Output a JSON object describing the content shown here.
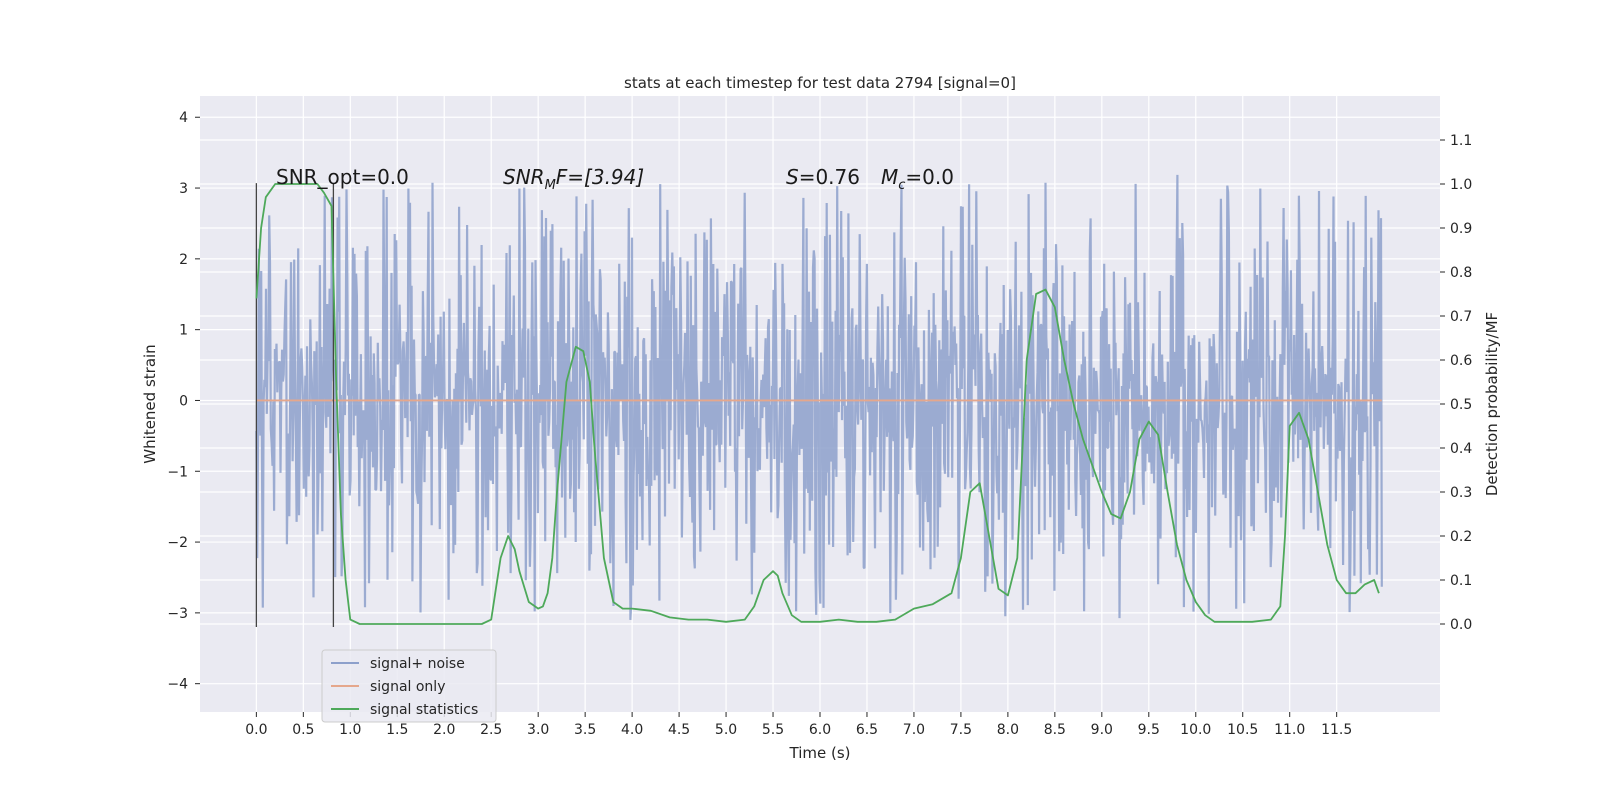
{
  "chart_data": {
    "type": "line",
    "title": "stats at each timestep for test data 2794 [signal=0]",
    "xlabel": "Time (s)",
    "ylabel": "Whitened strain",
    "ylabel_right": "Detection probability/MF",
    "xlim": [
      -0.6,
      12.6
    ],
    "ylim": [
      -4.4,
      4.3
    ],
    "ylim_right": [
      -0.2,
      1.2
    ],
    "xticks": [
      "0.0",
      "0.5",
      "1.0",
      "1.5",
      "2.0",
      "2.5",
      "3.0",
      "3.5",
      "4.0",
      "4.5",
      "5.0",
      "5.5",
      "6.0",
      "6.5",
      "7.0",
      "7.5",
      "8.0",
      "8.5",
      "9.0",
      "9.5",
      "10.0",
      "10.5",
      "11.0",
      "11.5"
    ],
    "yticks_left": [
      "4",
      "3",
      "2",
      "1",
      "0",
      "−1",
      "−2",
      "−3",
      "−4"
    ],
    "yticks_right": [
      "1.1",
      "1.0",
      "0.9",
      "0.8",
      "0.7",
      "0.6",
      "0.5",
      "0.4",
      "0.3",
      "0.2",
      "0.1",
      "0.0"
    ],
    "grid": true,
    "legend_position": "lower-left",
    "annotations": {
      "snr_opt": "SNR_opt=0.0",
      "snr_mf_main": "SNR",
      "snr_mf_sub": "M",
      "snr_mf_rest": "F=[3.94]",
      "s_main": "S",
      "s_rest": "=0.76",
      "mc_main": "M",
      "mc_sub": "c",
      "mc_rest": "=0.0"
    },
    "vertical_markers": [
      0.0,
      0.82
    ],
    "series": [
      {
        "name": "signal+ noise",
        "color": "#8da0cb",
        "kind": "noise",
        "x_range": [
          0.0,
          11.98
        ],
        "sigma": 1.0,
        "band_min": [
          -3.85,
          -2.4
        ],
        "band_max": [
          2.4,
          4.0
        ]
      },
      {
        "name": "signal only",
        "color": "#e5a78c",
        "x": [
          0.0,
          11.98
        ],
        "y": [
          0.0,
          0.0
        ]
      },
      {
        "name": "signal statistics",
        "color": "#4ea95a",
        "axis": "right",
        "x": [
          0.0,
          0.05,
          0.1,
          0.2,
          0.3,
          0.5,
          0.65,
          0.72,
          0.8,
          0.85,
          0.9,
          0.95,
          1.0,
          1.1,
          1.5,
          2.0,
          2.4,
          2.5,
          2.55,
          2.6,
          2.68,
          2.75,
          2.8,
          2.9,
          3.0,
          3.05,
          3.1,
          3.15,
          3.2,
          3.3,
          3.4,
          3.48,
          3.55,
          3.6,
          3.7,
          3.8,
          3.9,
          4.0,
          4.2,
          4.4,
          4.6,
          4.8,
          5.0,
          5.2,
          5.3,
          5.4,
          5.5,
          5.55,
          5.6,
          5.7,
          5.8,
          6.0,
          6.2,
          6.4,
          6.6,
          6.8,
          7.0,
          7.2,
          7.4,
          7.5,
          7.6,
          7.7,
          7.8,
          7.9,
          8.0,
          8.1,
          8.2,
          8.3,
          8.4,
          8.5,
          8.6,
          8.7,
          8.8,
          9.0,
          9.1,
          9.2,
          9.3,
          9.4,
          9.5,
          9.6,
          9.7,
          9.8,
          9.9,
          10.0,
          10.1,
          10.2,
          10.4,
          10.6,
          10.8,
          10.9,
          10.95,
          11.0,
          11.1,
          11.2,
          11.3,
          11.4,
          11.5,
          11.6,
          11.7,
          11.8,
          11.9,
          11.95
        ],
        "y": [
          0.74,
          0.9,
          0.97,
          1.0,
          1.0,
          1.0,
          1.0,
          0.98,
          0.95,
          0.55,
          0.25,
          0.1,
          0.01,
          0.0,
          0.0,
          0.0,
          0.0,
          0.01,
          0.08,
          0.15,
          0.2,
          0.17,
          0.12,
          0.05,
          0.035,
          0.04,
          0.07,
          0.15,
          0.3,
          0.55,
          0.63,
          0.62,
          0.55,
          0.4,
          0.15,
          0.05,
          0.035,
          0.035,
          0.03,
          0.015,
          0.01,
          0.01,
          0.005,
          0.01,
          0.04,
          0.1,
          0.12,
          0.11,
          0.07,
          0.02,
          0.005,
          0.005,
          0.01,
          0.005,
          0.005,
          0.01,
          0.035,
          0.045,
          0.07,
          0.15,
          0.3,
          0.32,
          0.2,
          0.08,
          0.065,
          0.15,
          0.6,
          0.75,
          0.76,
          0.72,
          0.6,
          0.5,
          0.42,
          0.3,
          0.25,
          0.24,
          0.3,
          0.42,
          0.46,
          0.43,
          0.3,
          0.18,
          0.1,
          0.05,
          0.02,
          0.005,
          0.005,
          0.005,
          0.01,
          0.04,
          0.2,
          0.45,
          0.48,
          0.42,
          0.3,
          0.18,
          0.1,
          0.07,
          0.07,
          0.09,
          0.1,
          0.07
        ]
      }
    ]
  }
}
